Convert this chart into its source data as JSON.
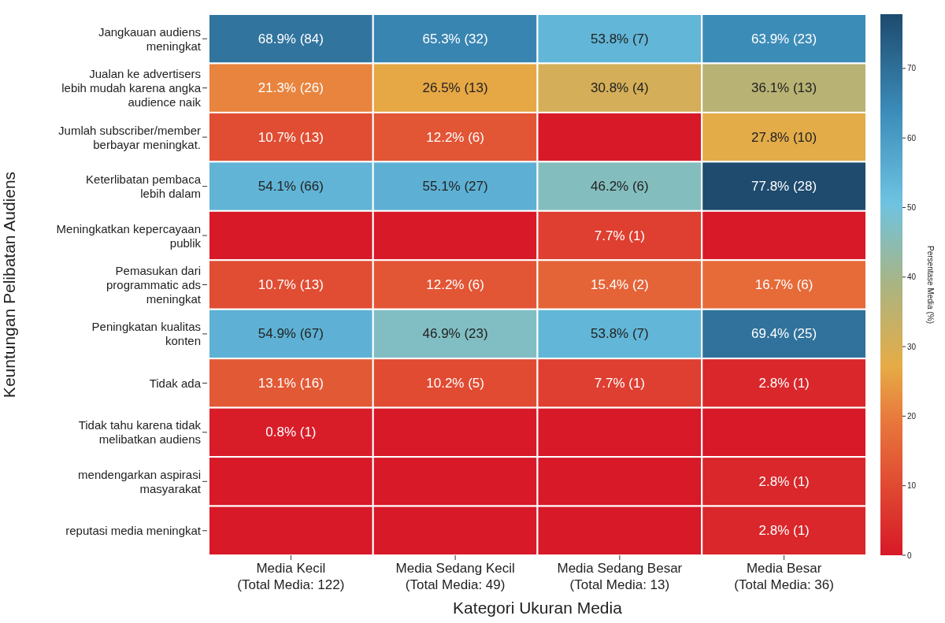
{
  "chart_data": {
    "type": "heatmap",
    "xlabel": "Kategori Ukuran Media",
    "ylabel": "Keuntungan Pelibatan Audiens",
    "clabel": "Persentase Media (%)",
    "categories": [
      "Media Kecil\n(Total Media: 122)",
      "Media Sedang Kecil\n(Total Media: 49)",
      "Media Sedang Besar\n(Total Media: 13)",
      "Media Besar\n(Total Media: 36)"
    ],
    "y_categories": [
      "Jangkauan audiens\nmeningkat",
      "Jualan ke advertisers\nlebih mudah karena angka\naudience naik",
      "Jumlah subscriber/member\nberbayar meningkat.",
      "Keterlibatan pembaca\nlebih dalam",
      "Meningkatkan kepercayaan\npublik",
      "Pemasukan dari\nprogrammatic ads\nmeningkat",
      "Peningkatan kualitas\nkonten",
      "Tidak ada",
      "Tidak tahu karena tidak\nmelibatkan audiens",
      "mendengarkan aspirasi\nmasyarakat",
      "reputasi media meningkat"
    ],
    "cells": [
      [
        68.9,
        65.3,
        53.8,
        63.9
      ],
      [
        21.3,
        26.5,
        30.8,
        36.1
      ],
      [
        10.7,
        12.2,
        0,
        27.8
      ],
      [
        54.1,
        55.1,
        46.2,
        77.8
      ],
      [
        0,
        0,
        7.7,
        0
      ],
      [
        10.7,
        12.2,
        15.4,
        16.7
      ],
      [
        54.9,
        46.9,
        53.8,
        69.4
      ],
      [
        13.1,
        10.2,
        7.7,
        2.8
      ],
      [
        0.8,
        0,
        0,
        0
      ],
      [
        0,
        0,
        0,
        2.8
      ],
      [
        0,
        0,
        0,
        2.8
      ]
    ],
    "cell_labels": [
      [
        "68.9% (84)",
        "65.3% (32)",
        "53.8% (7)",
        "63.9% (23)"
      ],
      [
        "21.3% (26)",
        "26.5% (13)",
        "30.8% (4)",
        "36.1% (13)"
      ],
      [
        "10.7% (13)",
        "12.2% (6)",
        null,
        "27.8% (10)"
      ],
      [
        "54.1% (66)",
        "55.1% (27)",
        "46.2% (6)",
        "77.8% (28)"
      ],
      [
        null,
        null,
        "7.7% (1)",
        null
      ],
      [
        "10.7% (13)",
        "12.2% (6)",
        "15.4% (2)",
        "16.7% (6)"
      ],
      [
        "54.9% (67)",
        "46.9% (23)",
        "53.8% (7)",
        "69.4% (25)"
      ],
      [
        "13.1% (16)",
        "10.2% (5)",
        "7.7% (1)",
        "2.8% (1)"
      ],
      [
        "0.8% (1)",
        null,
        null,
        null
      ],
      [
        null,
        null,
        null,
        "2.8% (1)"
      ],
      [
        null,
        null,
        null,
        "2.8% (1)"
      ]
    ],
    "clim": [
      0,
      77.8
    ],
    "cticks": [
      0,
      10,
      20,
      30,
      40,
      50,
      60,
      70
    ]
  }
}
